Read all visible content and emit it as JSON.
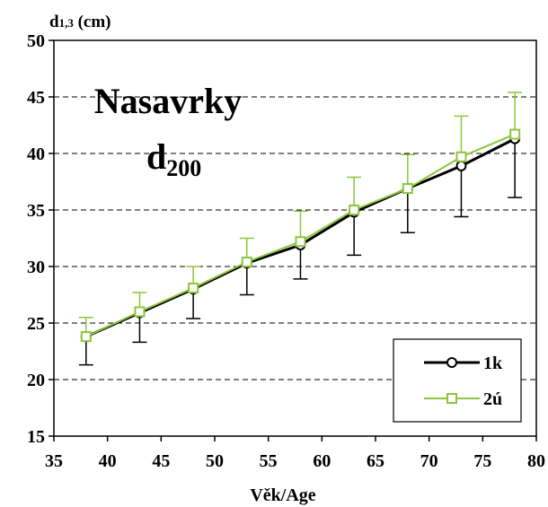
{
  "chart_data": {
    "type": "line",
    "title": "Nasavrky",
    "subtitle_main": "d",
    "subtitle_sub": "200",
    "ylabel_main": "d",
    "ylabel_sub": "1,3",
    "ylabel_unit": " (cm)",
    "xlabel": "Věk/Age",
    "xlim": [
      35,
      80
    ],
    "ylim": [
      15,
      50
    ],
    "xticks": [
      35,
      40,
      45,
      50,
      55,
      60,
      65,
      70,
      75,
      80
    ],
    "yticks": [
      15,
      20,
      25,
      30,
      35,
      40,
      45,
      50
    ],
    "grid": "horizontal-dashed",
    "legend_position": "bottom-right",
    "x": [
      38,
      43,
      48,
      53,
      58,
      63,
      68,
      73,
      78
    ],
    "series": [
      {
        "name": "1k",
        "color": "#000000",
        "marker": "circle",
        "values": [
          23.8,
          25.9,
          28.0,
          30.3,
          31.9,
          34.8,
          36.9,
          38.9,
          41.3
        ],
        "error_lower": [
          21.3,
          23.3,
          25.4,
          27.5,
          28.9,
          31.0,
          33.0,
          34.4,
          36.1
        ]
      },
      {
        "name": "2ú",
        "color": "#8cc63f",
        "marker": "square",
        "values": [
          23.8,
          26.0,
          28.1,
          30.4,
          32.2,
          35.0,
          36.9,
          39.7,
          41.7
        ],
        "error_upper": [
          25.5,
          27.7,
          30.0,
          32.5,
          34.9,
          37.9,
          39.9,
          43.3,
          45.4
        ]
      }
    ]
  }
}
